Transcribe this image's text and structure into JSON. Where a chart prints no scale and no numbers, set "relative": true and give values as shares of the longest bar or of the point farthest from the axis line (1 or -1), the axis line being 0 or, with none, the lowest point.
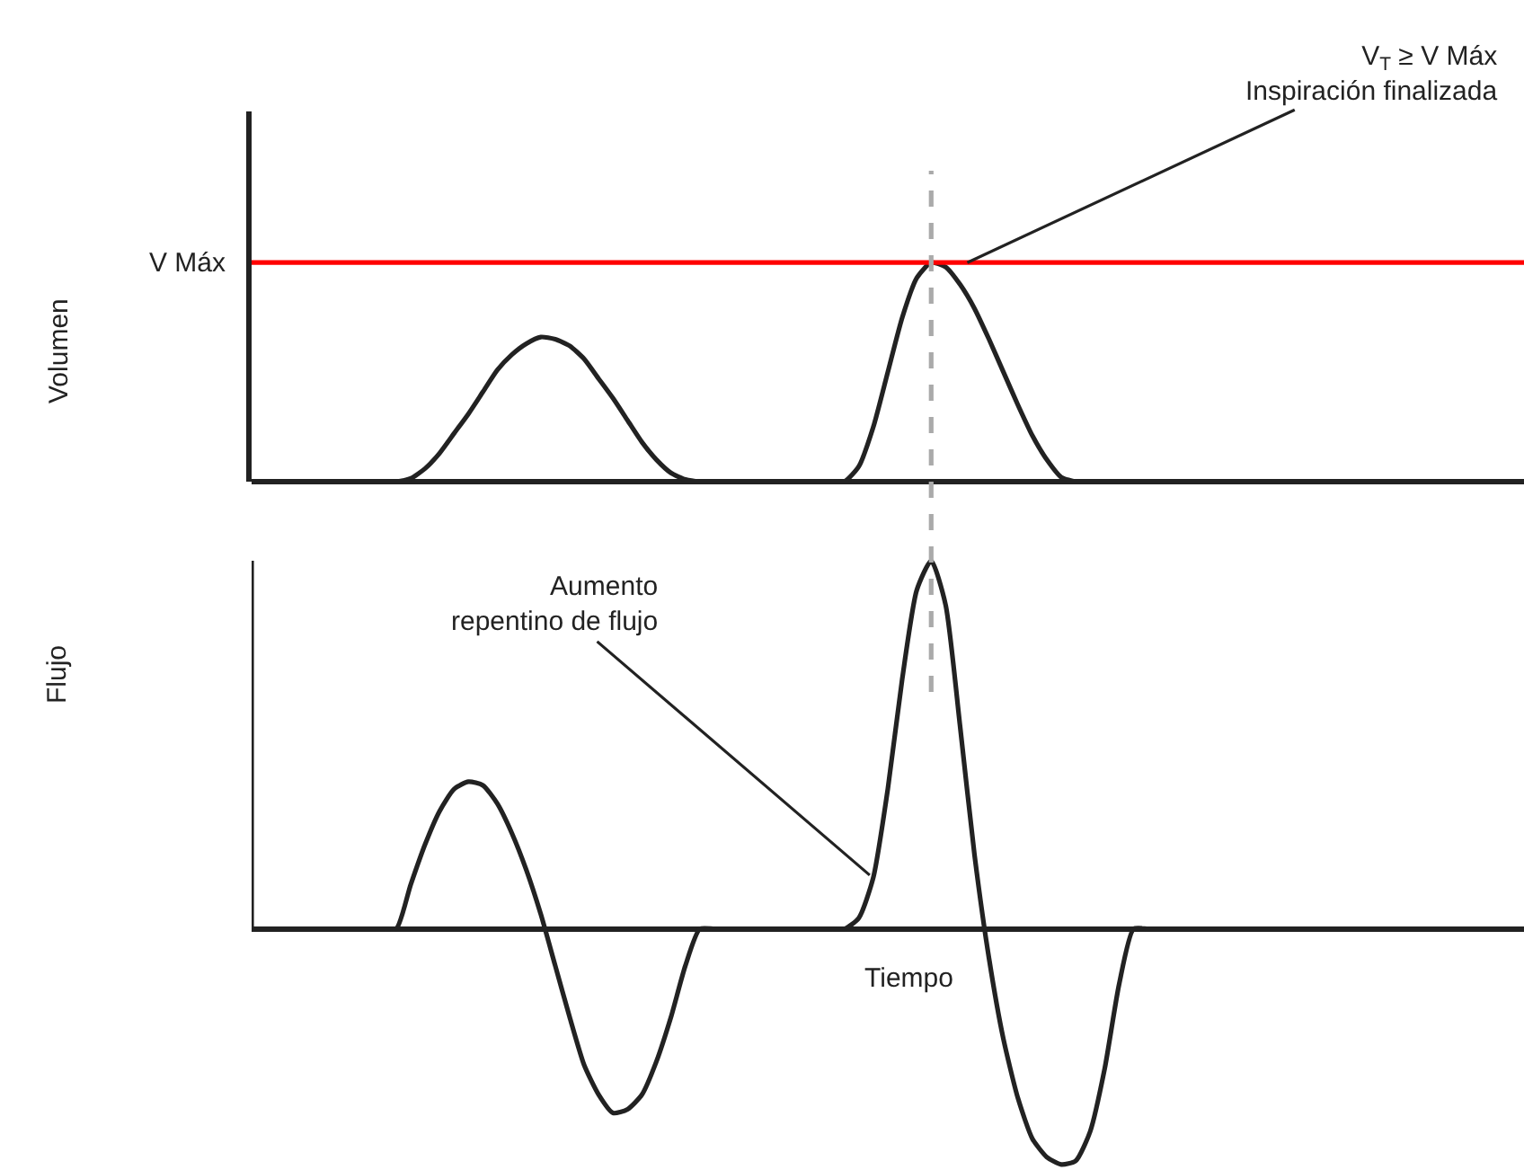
{
  "chart_data": [
    {
      "type": "line",
      "relative": true,
      "ylabel": "Volumen",
      "legend": false,
      "marker": "none",
      "line_style": "solid",
      "categories": [
        null,
        null,
        null,
        null,
        null,
        null,
        null,
        null,
        null,
        null,
        null,
        null,
        null,
        null,
        null,
        null,
        null,
        null,
        null,
        null,
        null,
        null,
        null,
        null,
        null,
        null,
        null,
        null,
        null,
        null,
        null,
        null,
        null,
        null,
        null,
        null,
        null,
        null,
        null,
        null,
        null,
        null,
        null,
        null,
        null,
        null,
        null,
        null,
        null,
        null,
        null,
        null,
        null,
        null,
        null,
        null,
        null,
        null,
        null,
        null,
        null,
        null,
        null,
        null,
        null,
        null,
        null,
        null,
        null,
        null,
        null,
        null,
        null,
        null,
        null,
        null,
        null,
        null,
        null,
        null,
        null,
        null,
        null,
        null,
        null,
        null,
        null,
        null,
        null
      ],
      "series": [
        {
          "color": "#222222",
          "values": [
            0,
            0,
            0,
            0,
            0,
            0,
            0,
            0,
            0,
            0,
            0,
            0.015,
            0.06,
            0.13,
            0.22,
            0.31,
            0.41,
            0.51,
            0.58,
            0.63,
            0.66,
            0.65,
            0.62,
            0.56,
            0.47,
            0.38,
            0.28,
            0.18,
            0.1,
            0.04,
            0.01,
            0,
            0,
            0,
            0,
            0,
            0,
            0,
            0,
            0,
            0,
            0,
            0.07,
            0.25,
            0.5,
            0.75,
            0.93,
            1,
            0.98,
            0.9,
            0.79,
            0.65,
            0.5,
            0.35,
            0.21,
            0.1,
            0.02,
            0,
            0,
            0,
            0,
            0,
            0,
            0,
            0,
            0,
            0,
            0,
            0,
            0,
            0,
            0,
            0,
            0,
            0,
            0,
            0,
            0,
            0,
            0,
            0,
            0,
            0,
            0,
            0,
            0,
            0,
            0,
            0
          ]
        }
      ],
      "ref_lines": [
        {
          "axis": "y",
          "value": 1,
          "label": "V Máx",
          "color": "#ff0000",
          "line_style": "solid"
        }
      ],
      "annotations": [
        "V$_{T}$ ≥ V Máx\nInspiración finalizada"
      ]
    },
    {
      "type": "line",
      "relative": true,
      "ylabel": "Flujo",
      "xlabel": "Tiempo",
      "legend": false,
      "marker": "none",
      "line_style": "solid",
      "categories": [
        null,
        null,
        null,
        null,
        null,
        null,
        null,
        null,
        null,
        null,
        null,
        null,
        null,
        null,
        null,
        null,
        null,
        null,
        null,
        null,
        null,
        null,
        null,
        null,
        null,
        null,
        null,
        null,
        null,
        null,
        null,
        null,
        null,
        null,
        null,
        null,
        null,
        null,
        null,
        null,
        null,
        null,
        null,
        null,
        null,
        null,
        null,
        null,
        null,
        null,
        null,
        null,
        null,
        null,
        null,
        null,
        null,
        null,
        null,
        null,
        null,
        null,
        null,
        null,
        null,
        null,
        null,
        null,
        null,
        null,
        null,
        null,
        null,
        null,
        null,
        null,
        null,
        null,
        null,
        null,
        null,
        null,
        null,
        null,
        null,
        null,
        null,
        null,
        null
      ],
      "series": [
        {
          "color": "#222222",
          "values": [
            0,
            0,
            0,
            0,
            0,
            0,
            0,
            0,
            0,
            0,
            0,
            0.12,
            0.23,
            0.32,
            0.38,
            0.4,
            0.39,
            0.34,
            0.26,
            0.16,
            0.04,
            -0.1,
            -0.24,
            -0.37,
            -0.45,
            -0.5,
            -0.49,
            -0.45,
            -0.36,
            -0.24,
            -0.1,
            0,
            0,
            0,
            0,
            0,
            0,
            0,
            0,
            0,
            0,
            0,
            0.03,
            0.14,
            0.38,
            0.68,
            0.92,
            1,
            0.88,
            0.55,
            0.2,
            -0.08,
            -0.3,
            -0.46,
            -0.57,
            -0.62,
            -0.64,
            -0.63,
            -0.55,
            -0.38,
            -0.15,
            0,
            0,
            0,
            0,
            0,
            0,
            0,
            0,
            0,
            0,
            0,
            0,
            0,
            0,
            0,
            0,
            0,
            0,
            0,
            0,
            0,
            0,
            0,
            0,
            0,
            0,
            0,
            0
          ]
        }
      ],
      "annotations": [
        "Aumento\nrepentino de flujo"
      ]
    }
  ]
}
